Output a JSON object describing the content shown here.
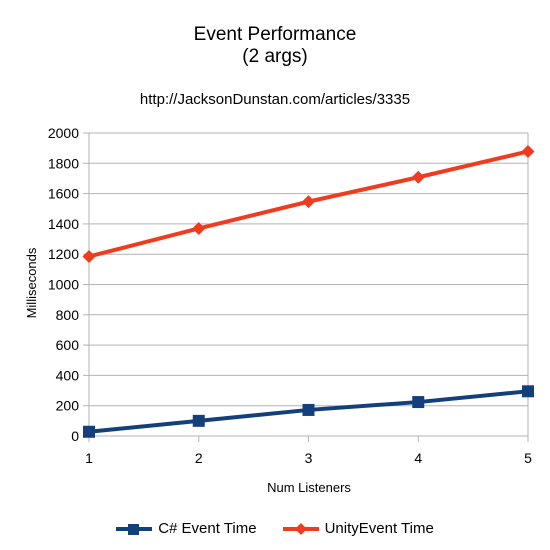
{
  "chart_data": {
    "type": "line",
    "title": "Event Performance",
    "title_line2": "(2 args)",
    "subtitle": "http://JacksonDunstan.com/articles/3335",
    "xlabel": "Num Listeners",
    "ylabel": "Milliseconds",
    "x": [
      1,
      2,
      3,
      4,
      5
    ],
    "ylim": [
      0,
      2000
    ],
    "yticks": [
      0,
      200,
      400,
      600,
      800,
      1000,
      1200,
      1400,
      1600,
      1800,
      2000
    ],
    "grid": true,
    "legend_position": "bottom",
    "series": [
      {
        "name": "C# Event Time",
        "values": [
          28,
          100,
          172,
          224,
          295
        ],
        "color": "#133f7a",
        "marker": "square"
      },
      {
        "name": "UnityEvent Time",
        "values": [
          1185,
          1370,
          1547,
          1708,
          1878
        ],
        "color": "#f03c1e",
        "marker": "diamond"
      }
    ]
  }
}
